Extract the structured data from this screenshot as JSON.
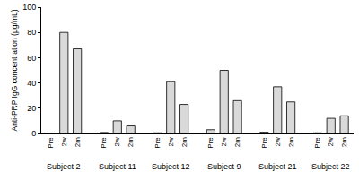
{
  "chart_data": {
    "type": "bar",
    "y_label": "Anti-PRP IgG concentration (μg/mL)",
    "groups": [
      "Subject 2",
      "Subject 11",
      "Subject 12",
      "Subject 9",
      "Subject 21",
      "Subject 22"
    ],
    "categories": [
      "Pre",
      "2w",
      "2m",
      "Pre",
      "2w",
      "2m",
      "Pre",
      "2w",
      "2m",
      "Pre",
      "2w",
      "2m",
      "Pre",
      "2w",
      "2m",
      "Pre",
      "2w",
      "2m"
    ],
    "values": [
      0.3,
      80,
      67,
      0.8,
      10,
      6,
      0.5,
      41,
      23,
      3,
      50,
      26,
      1,
      37,
      25,
      0.5,
      12,
      14
    ],
    "color": "#d9d9d9",
    "ylim": [
      0,
      100
    ],
    "yticks": [
      0,
      20,
      40,
      60,
      80,
      100
    ],
    "grid": false
  }
}
